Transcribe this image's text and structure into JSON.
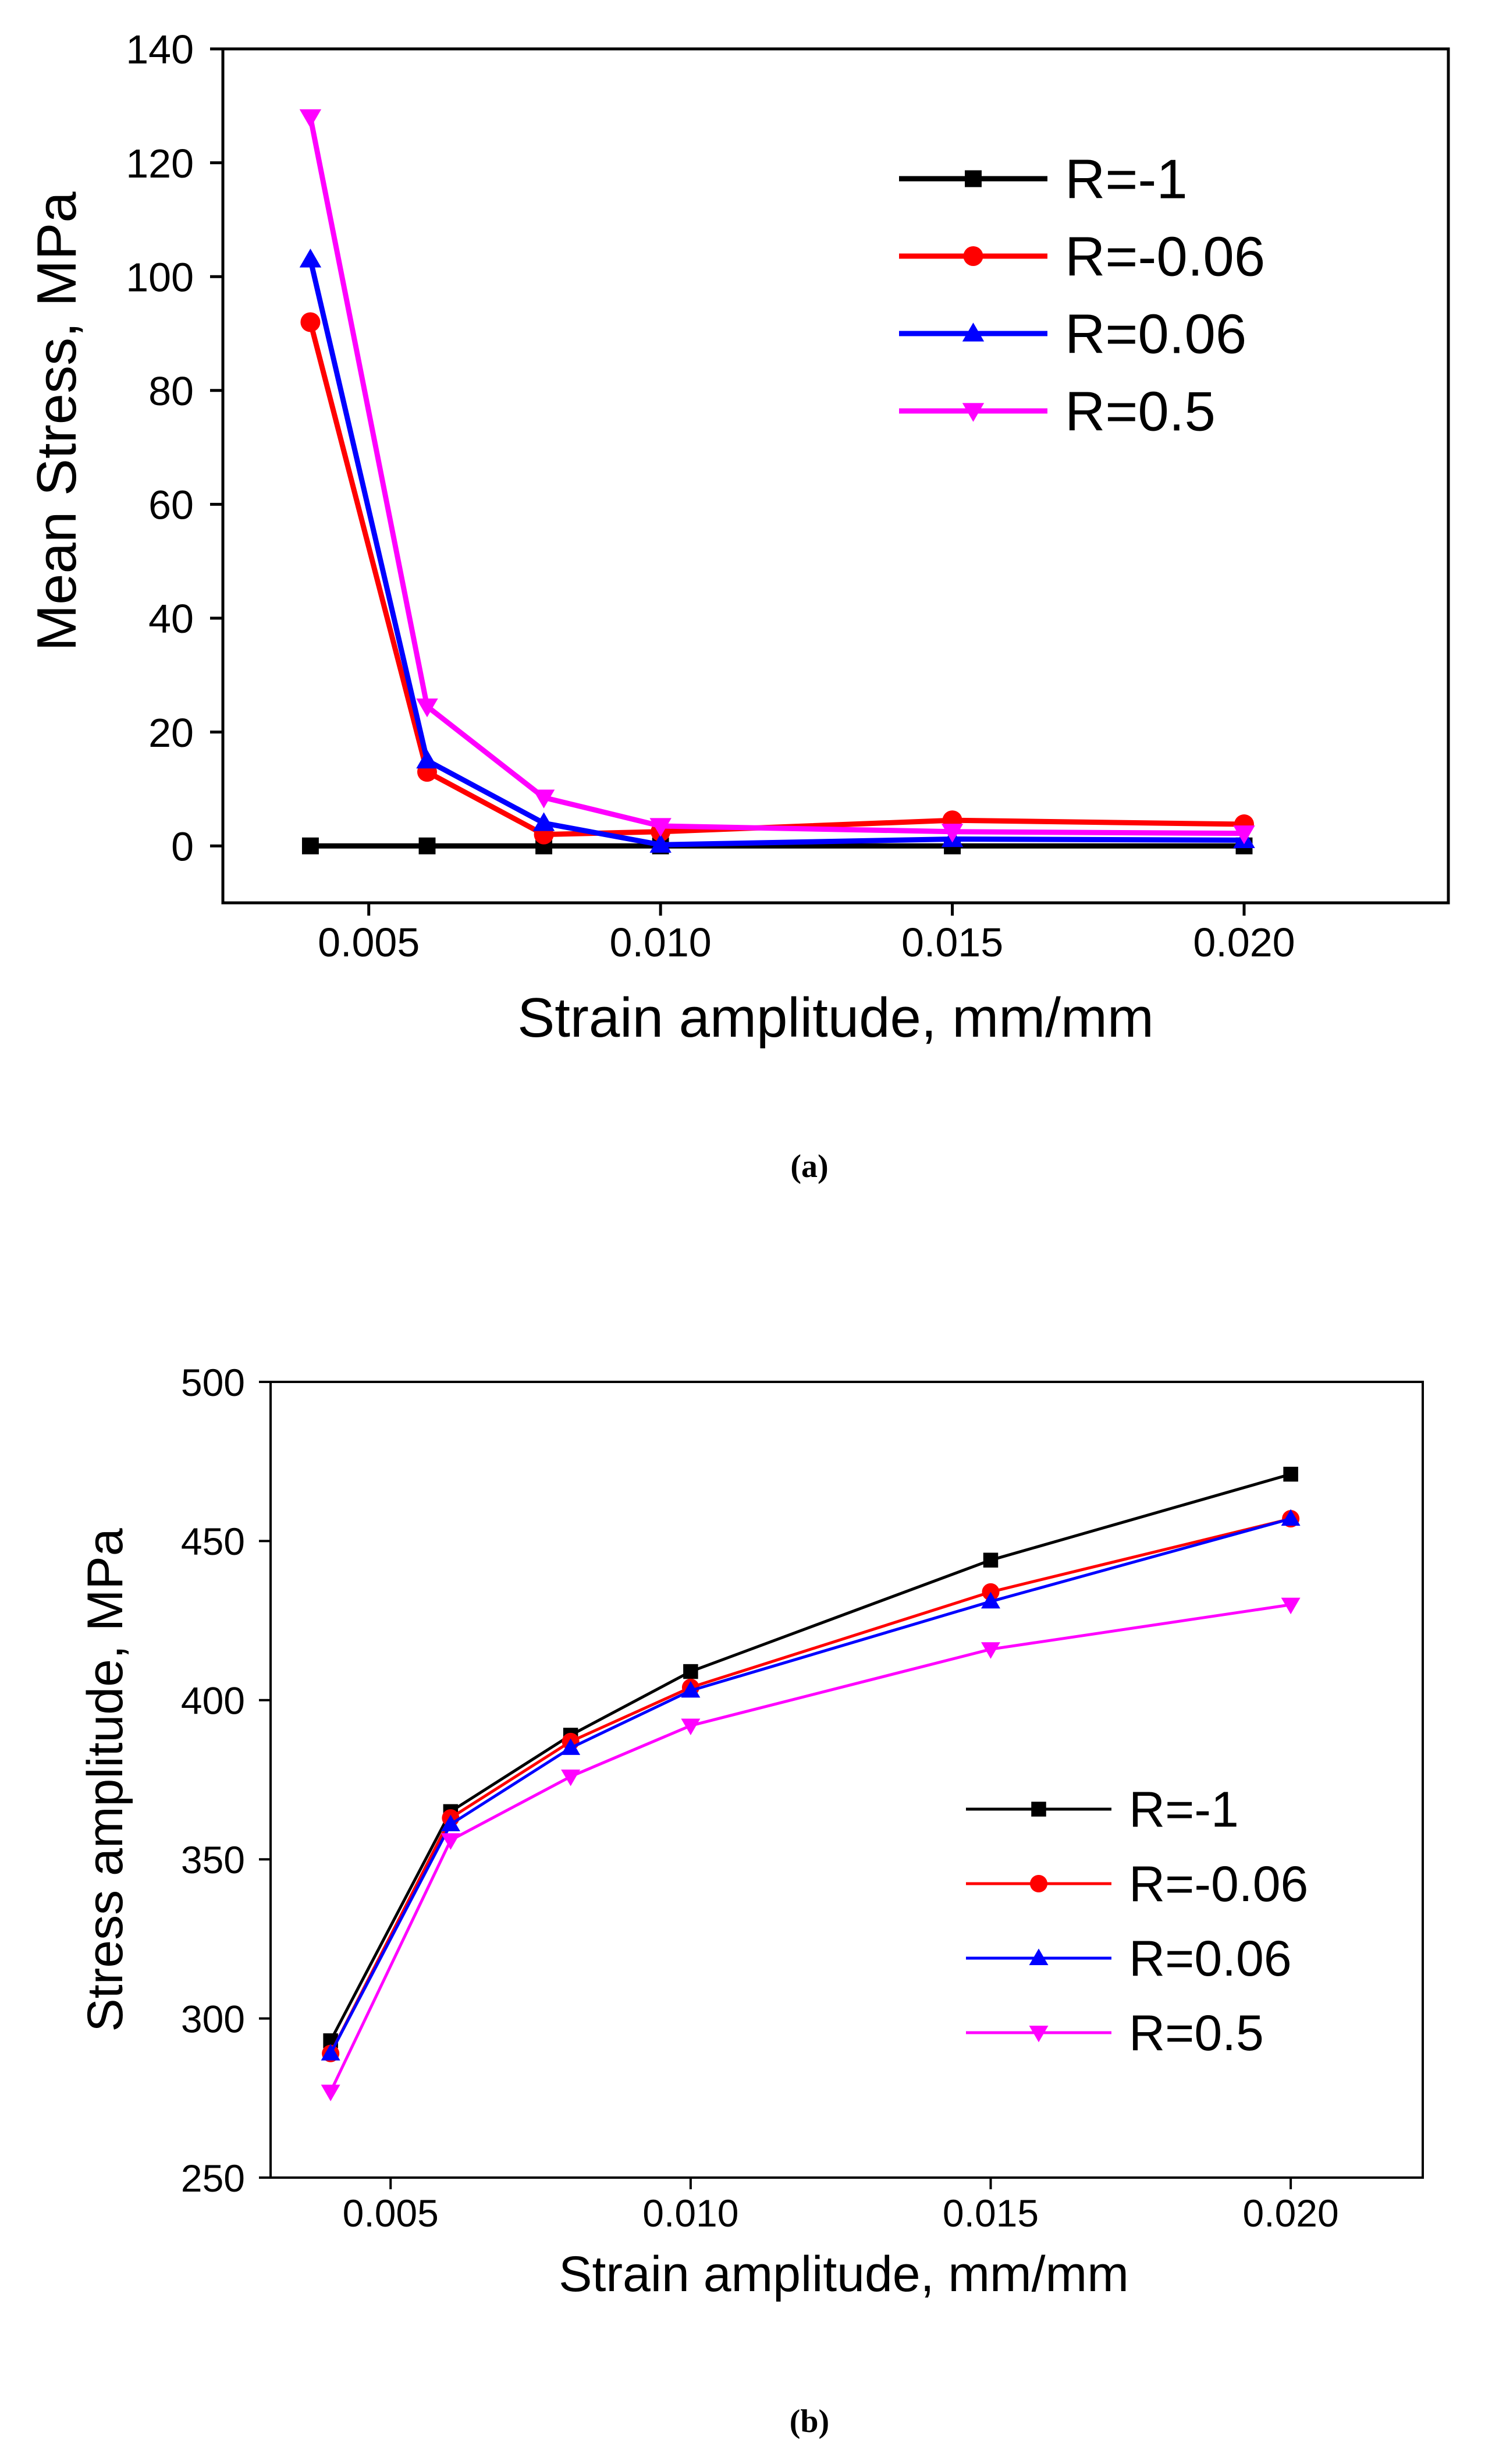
{
  "chart_data": [
    {
      "type": "line",
      "title": "",
      "caption": "(a)",
      "xlabel": "Strain  amplitude, mm/mm",
      "ylabel": "Mean Stress, MPa",
      "xlim": [
        0.0025,
        0.0235
      ],
      "ylim": [
        -10,
        140
      ],
      "x_ticks": [
        0.005,
        0.01,
        0.015,
        0.02
      ],
      "x_tick_labels": [
        "0.005",
        "0.010",
        "0.015",
        "0.020"
      ],
      "y_ticks": [
        0,
        20,
        40,
        60,
        80,
        100,
        120,
        140
      ],
      "y_tick_labels": [
        "0",
        "20",
        "40",
        "60",
        "80",
        "100",
        "120",
        "140"
      ],
      "legend_position": "top-right",
      "x": [
        0.004,
        0.006,
        0.008,
        0.01,
        0.015,
        0.02
      ],
      "series": [
        {
          "name": "R=-1",
          "color": "#000000",
          "marker": "square",
          "values": [
            0,
            0,
            0,
            0,
            0,
            0
          ]
        },
        {
          "name": "R=-0.06",
          "color": "#ff0000",
          "marker": "circle",
          "values": [
            92,
            13,
            2,
            2.5,
            4.5,
            3.8
          ]
        },
        {
          "name": "R=0.06",
          "color": "#0000ff",
          "marker": "triangle-up",
          "values": [
            103,
            15,
            4,
            0.2,
            1.2,
            1.0
          ]
        },
        {
          "name": "R=0.5",
          "color": "#ff00ff",
          "marker": "triangle-down",
          "values": [
            128,
            24.5,
            8.5,
            3.5,
            2.5,
            2.2
          ]
        }
      ]
    },
    {
      "type": "line",
      "title": "",
      "caption": "(b)",
      "xlabel": "Strain  amplitude, mm/mm",
      "ylabel": "Stress amplitude, MPa",
      "xlim": [
        0.003,
        0.0222
      ],
      "ylim": [
        250,
        500
      ],
      "x_ticks": [
        0.005,
        0.01,
        0.015,
        0.02
      ],
      "x_tick_labels": [
        "0.005",
        "0.010",
        "0.015",
        "0.020"
      ],
      "y_ticks": [
        250,
        300,
        350,
        400,
        450,
        500
      ],
      "y_tick_labels": [
        "250",
        "300",
        "350",
        "400",
        "450",
        "500"
      ],
      "legend_position": "bottom-right",
      "x": [
        0.004,
        0.006,
        0.008,
        0.01,
        0.015,
        0.02
      ],
      "series": [
        {
          "name": "R=-1",
          "color": "#000000",
          "marker": "square",
          "values": [
            293,
            365,
            389,
            409,
            444,
            471
          ]
        },
        {
          "name": "R=-0.06",
          "color": "#ff0000",
          "marker": "circle",
          "values": [
            289,
            363,
            387,
            404,
            434,
            457
          ]
        },
        {
          "name": "R=0.06",
          "color": "#0000ff",
          "marker": "triangle-up",
          "values": [
            289,
            361,
            385,
            403,
            431,
            457
          ]
        },
        {
          "name": "R=0.5",
          "color": "#ff00ff",
          "marker": "triangle-down",
          "values": [
            277,
            356,
            376,
            392,
            416,
            430
          ]
        }
      ]
    }
  ]
}
